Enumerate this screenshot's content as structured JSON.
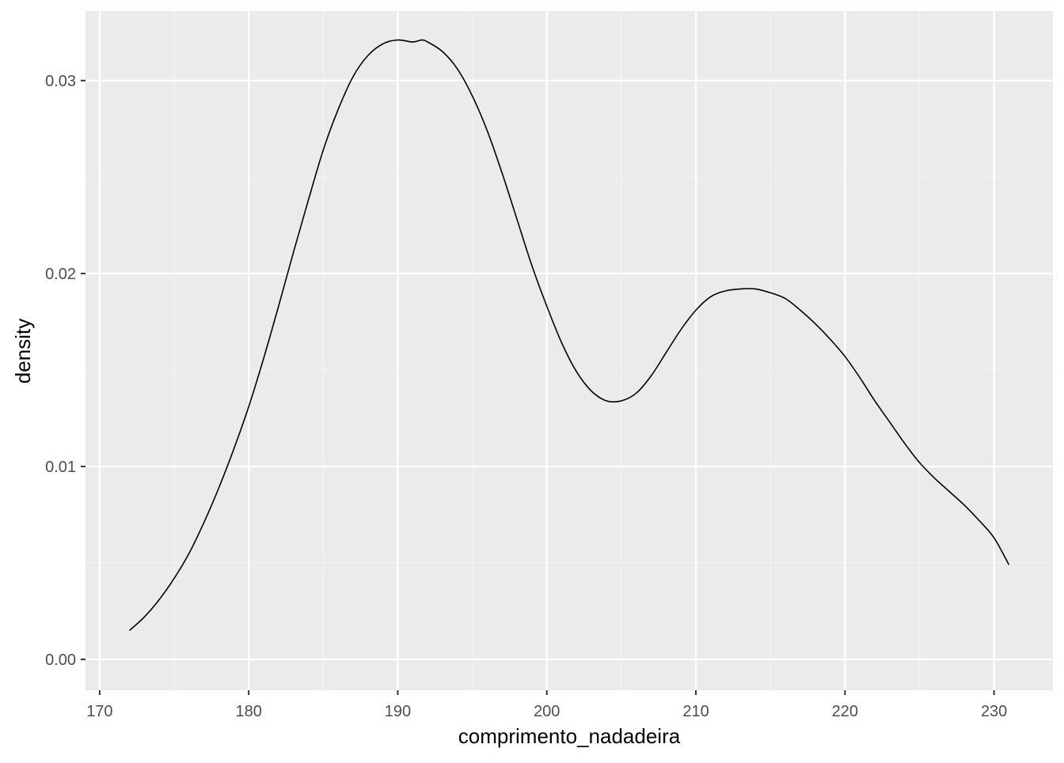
{
  "chart_data": {
    "type": "line",
    "geom": "density",
    "title": "",
    "xlabel": "comprimento_nadadeira",
    "ylabel": "density",
    "xlim": [
      169.05,
      233.95
    ],
    "ylim": [
      -0.0016,
      0.0336
    ],
    "x_ticks": [
      170,
      180,
      190,
      200,
      210,
      220,
      230
    ],
    "x_tick_labels": [
      "170",
      "180",
      "190",
      "200",
      "210",
      "220",
      "230"
    ],
    "y_ticks": [
      0.0,
      0.01,
      0.02,
      0.03
    ],
    "y_tick_labels": [
      "0.00",
      "0.01",
      "0.02",
      "0.03"
    ],
    "grid": true,
    "legend": "none",
    "colors": {
      "panel_background": "#ebebeb",
      "grid_major": "#ffffff",
      "grid_minor": "#f4f4f4",
      "line": "#000000",
      "axis_text": "#4d4d4d",
      "axis_title": "#000000"
    },
    "series": [
      {
        "x": [
          172,
          173,
          174,
          175,
          176,
          177,
          178,
          179,
          180,
          181,
          182,
          183,
          184,
          185,
          186,
          187,
          188,
          189,
          190,
          191,
          191.6,
          192,
          193,
          194,
          195,
          196,
          197,
          198,
          199,
          200,
          201,
          202,
          203,
          204,
          205,
          206,
          207,
          208,
          209,
          210,
          211,
          212,
          213,
          214,
          215,
          216,
          217,
          218,
          219,
          220,
          221,
          222,
          223,
          224,
          225,
          226,
          227,
          228,
          229,
          230,
          231
        ],
        "y": [
          0.0015,
          0.0022,
          0.0031,
          0.0042,
          0.0055,
          0.0071,
          0.0089,
          0.0109,
          0.0131,
          0.0156,
          0.0183,
          0.0211,
          0.0238,
          0.0264,
          0.0285,
          0.0302,
          0.0313,
          0.0319,
          0.0321,
          0.032,
          0.0321,
          0.032,
          0.0315,
          0.0306,
          0.0292,
          0.0274,
          0.0252,
          0.0228,
          0.0204,
          0.0183,
          0.0164,
          0.0149,
          0.0139,
          0.0134,
          0.0134,
          0.0138,
          0.0147,
          0.0159,
          0.0171,
          0.0181,
          0.0188,
          0.0191,
          0.0192,
          0.0192,
          0.019,
          0.0187,
          0.0181,
          0.0174,
          0.0166,
          0.0157,
          0.0146,
          0.0134,
          0.0123,
          0.0112,
          0.0102,
          0.0094,
          0.0087,
          0.008,
          0.0072,
          0.0063,
          0.0049
        ]
      }
    ]
  }
}
